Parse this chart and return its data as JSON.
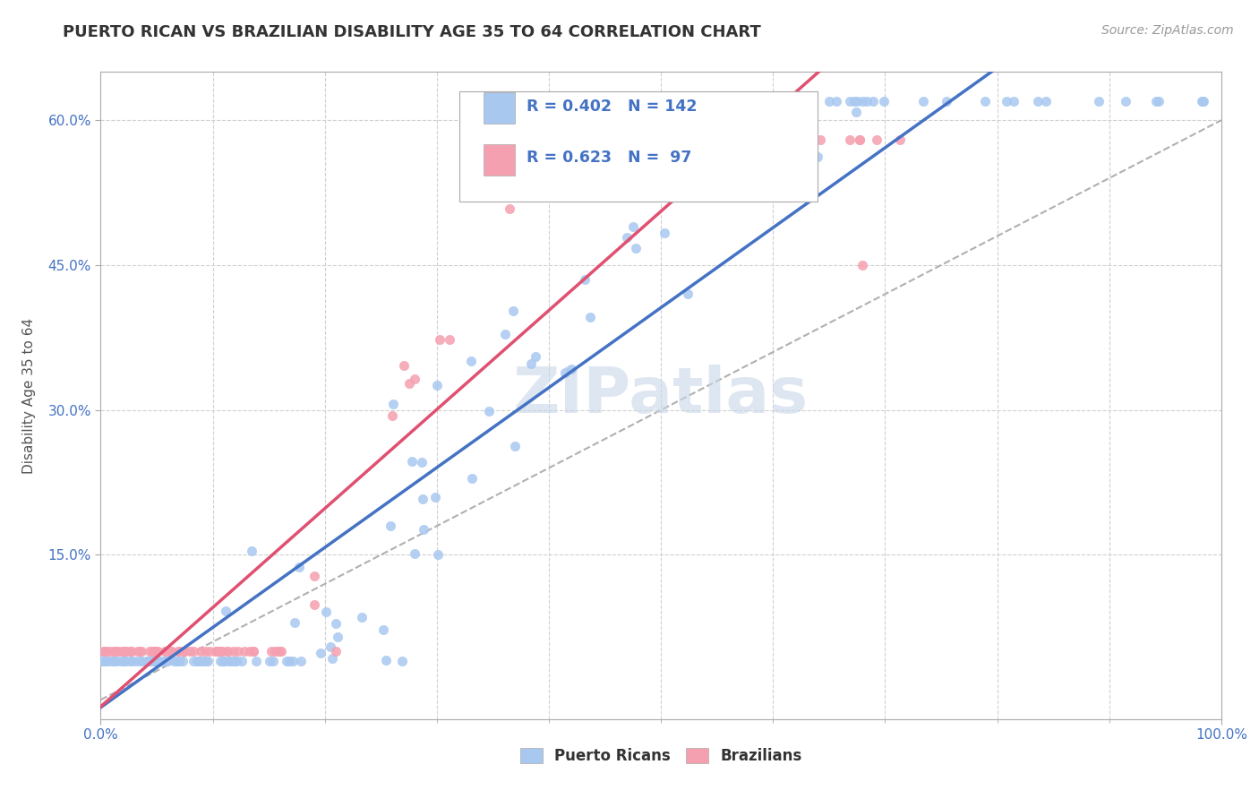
{
  "title": "PUERTO RICAN VS BRAZILIAN DISABILITY AGE 35 TO 64 CORRELATION CHART",
  "source_text": "Source: ZipAtlas.com",
  "ylabel": "Disability Age 35 to 64",
  "xlim": [
    0.0,
    1.0
  ],
  "ylim": [
    -0.02,
    0.65
  ],
  "pr_color": "#a8c8f0",
  "br_color": "#f5a0b0",
  "pr_line_color": "#4472c4",
  "br_line_color": "#e05070",
  "diagonal_color": "#b0b0b0",
  "watermark": "ZIPatlas",
  "pr_R": 0.402,
  "pr_N": 142,
  "br_R": 0.623,
  "br_N": 97,
  "grid_color": "#d0d0d0",
  "background_color": "#ffffff",
  "title_color": "#333333",
  "axis_label_color": "#555555",
  "tick_color": "#4472c4",
  "watermark_color": "#c8d8e8"
}
